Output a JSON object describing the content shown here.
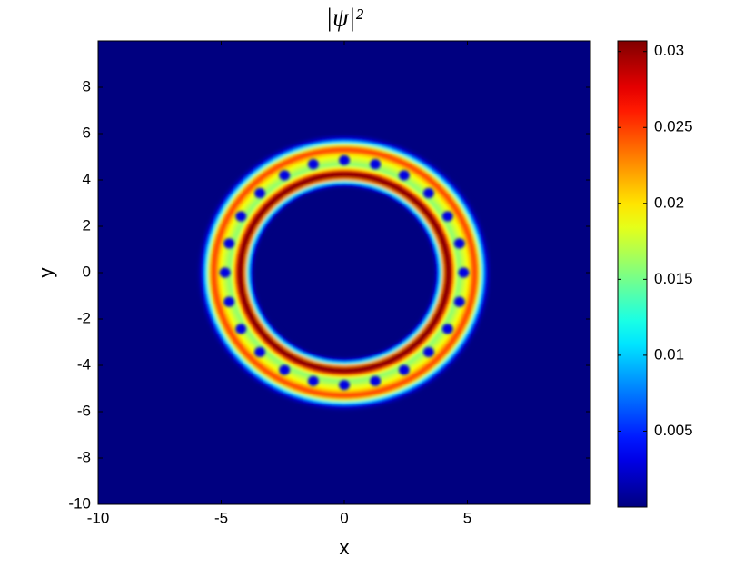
{
  "chart_data": {
    "type": "radial-heatmap",
    "title": "|ψ|²",
    "x_label": "x",
    "y_label": "y",
    "colormap": "jet",
    "xlim": [
      -10,
      10
    ],
    "ylim": [
      -10,
      10
    ],
    "xticks": [
      -10,
      -5,
      0,
      5
    ],
    "yticks": [
      -10,
      -8,
      -6,
      -4,
      -2,
      0,
      2,
      4,
      6,
      8
    ],
    "clim": [
      0,
      0.0307
    ],
    "cticks": [
      0.005,
      0.01,
      0.015,
      0.02,
      0.025,
      0.03
    ],
    "r": [
      3.6,
      3.7,
      3.8,
      3.9,
      4.0,
      4.1,
      4.2,
      4.3,
      4.4,
      4.5,
      4.6,
      4.7,
      4.8,
      4.9,
      5.0,
      5.1,
      5.2,
      5.3,
      5.4,
      5.5,
      5.6,
      5.7,
      5.8,
      5.9,
      6.0
    ],
    "values": [
      0,
      0.001,
      0.004,
      0.012,
      0.022,
      0.029,
      0.031,
      0.03,
      0.025,
      0.019,
      0.016,
      0.016,
      0.017,
      0.018,
      0.019,
      0.021,
      0.024,
      0.025,
      0.023,
      0.018,
      0.011,
      0.005,
      0.002,
      0.0005,
      0
    ],
    "vortices": {
      "x": [
        4.85,
        4.68,
        4.2,
        3.43,
        2.43,
        1.26,
        0,
        -1.26,
        -2.43,
        -3.43,
        -4.2,
        -4.68,
        -4.85,
        -4.68,
        -4.2,
        -3.43,
        -2.43,
        -1.26,
        0,
        1.26,
        2.43,
        3.43,
        4.2,
        4.68
      ],
      "y": [
        0,
        1.26,
        2.43,
        3.43,
        4.2,
        4.68,
        4.85,
        4.68,
        4.2,
        3.43,
        2.43,
        1.26,
        0,
        -1.26,
        -2.43,
        -3.43,
        -4.2,
        -4.68,
        -4.85,
        -4.68,
        -4.2,
        -3.43,
        -2.43,
        -1.26
      ],
      "values": [
        0.003,
        0.003,
        0.003,
        0.003,
        0.003,
        0.003,
        0.003,
        0.003,
        0.003,
        0.003,
        0.003,
        0.003,
        0.003,
        0.003,
        0.003,
        0.003,
        0.003,
        0.003,
        0.003,
        0.003,
        0.003,
        0.003,
        0.003,
        0.003
      ]
    }
  }
}
